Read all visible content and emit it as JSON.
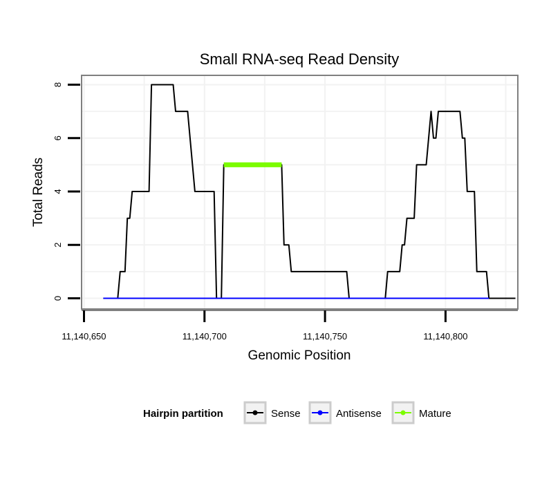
{
  "chart_data": {
    "type": "line",
    "title": "Small RNA-seq Read Density",
    "xlabel": "Genomic Position",
    "ylabel": "Total Reads",
    "xlim": [
      11140649,
      11140830
    ],
    "ylim": [
      -0.4,
      8.35
    ],
    "x_ticks": [
      11140650,
      11140700,
      11140750,
      11140800
    ],
    "x_tick_labels": [
      "11,140,650",
      "11,140,700",
      "11,140,750",
      "11,140,800"
    ],
    "y_ticks": [
      0,
      2,
      4,
      6,
      8
    ],
    "y_tick_labels": [
      "0",
      "2",
      "4",
      "6",
      "8"
    ],
    "grid": true,
    "legend": {
      "title": "Hairpin partition",
      "position": "bottom",
      "entries": [
        "Sense",
        "Antisense",
        "Mature"
      ]
    },
    "series": [
      {
        "name": "Sense",
        "color": "#000000",
        "points": [
          [
            11140658,
            0
          ],
          [
            11140664,
            0
          ],
          [
            11140665,
            1
          ],
          [
            11140667,
            1
          ],
          [
            11140668,
            3
          ],
          [
            11140669,
            3
          ],
          [
            11140670,
            4
          ],
          [
            11140677,
            4
          ],
          [
            11140678,
            8
          ],
          [
            11140687,
            8
          ],
          [
            11140688,
            7
          ],
          [
            11140693,
            7
          ],
          [
            11140696,
            4
          ],
          [
            11140704,
            4
          ],
          [
            11140705,
            0
          ],
          [
            11140707,
            0
          ],
          [
            11140708,
            5
          ],
          [
            11140732,
            5
          ],
          [
            11140733,
            2
          ],
          [
            11140735,
            2
          ],
          [
            11140736,
            1
          ],
          [
            11140759,
            1
          ],
          [
            11140760,
            0
          ],
          [
            11140775,
            0
          ],
          [
            11140776,
            1
          ],
          [
            11140781,
            1
          ],
          [
            11140782,
            2
          ],
          [
            11140783,
            2
          ],
          [
            11140784,
            3
          ],
          [
            11140787,
            3
          ],
          [
            11140788,
            5
          ],
          [
            11140792,
            5
          ],
          [
            11140794,
            7
          ],
          [
            11140795,
            6
          ],
          [
            11140796,
            6
          ],
          [
            11140797,
            7
          ],
          [
            11140806,
            7
          ],
          [
            11140807,
            6
          ],
          [
            11140808,
            6
          ],
          [
            11140809,
            4
          ],
          [
            11140812,
            4
          ],
          [
            11140813,
            1
          ],
          [
            11140817,
            1
          ],
          [
            11140818,
            0
          ],
          [
            11140829,
            0
          ]
        ]
      },
      {
        "name": "Antisense",
        "color": "#0000ff",
        "points": [
          [
            11140658,
            0
          ],
          [
            11140818,
            0
          ]
        ]
      },
      {
        "name": "Mature",
        "color": "#7cfc00",
        "points": [
          [
            11140708,
            5
          ],
          [
            11140732,
            5
          ]
        ]
      }
    ]
  }
}
